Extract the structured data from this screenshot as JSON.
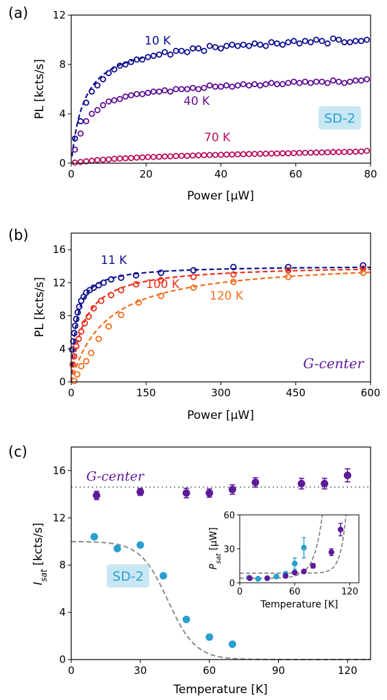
{
  "chart_data": [
    {
      "panel_label": "(a)",
      "type": "scatter",
      "xlabel": "Power [μW]",
      "ylabel": "PL [kcts/s]",
      "xlim": [
        0,
        80
      ],
      "ylim": [
        0,
        12
      ],
      "xticks": [
        "0",
        "20",
        "40",
        "60",
        "80"
      ],
      "yticks": [
        "0",
        "4",
        "8",
        "12"
      ],
      "tag": "SD-2",
      "series": [
        {
          "name": "10 K",
          "color": "#0d0d8c",
          "x": [
            1,
            2.5,
            4,
            5.5,
            7,
            8.5,
            10,
            11.5,
            13,
            14.5,
            16,
            17.5,
            19,
            20.5,
            22,
            23.5,
            25,
            26.5,
            28,
            29.5,
            31,
            32.5,
            34,
            35.5,
            37,
            38.5,
            40,
            41.5,
            43,
            44.5,
            46,
            47.5,
            49,
            50.5,
            52,
            53.5,
            55,
            56.5,
            58,
            59.5,
            61,
            62.5,
            64,
            65.5,
            67,
            68.5,
            70,
            71.5,
            73,
            74.5,
            76,
            77.5,
            79
          ],
          "y": [
            2.0,
            3.4,
            4.9,
            5.8,
            6.3,
            6.8,
            7.3,
            7.6,
            7.9,
            8.0,
            8.2,
            8.4,
            8.4,
            8.6,
            8.7,
            8.8,
            9.0,
            8.8,
            9.1,
            9.1,
            9.0,
            9.3,
            9.3,
            9.1,
            9.5,
            9.4,
            9.3,
            9.5,
            9.6,
            9.5,
            9.6,
            9.5,
            9.7,
            9.6,
            9.5,
            9.8,
            9.7,
            9.6,
            9.8,
            9.9,
            9.7,
            9.9,
            9.8,
            10.0,
            9.9,
            9.7,
            10.1,
            10.0,
            9.8,
            9.8,
            9.9,
            9.9,
            10.0
          ],
          "fit": "saturation",
          "fit_isat": 10.1,
          "fit_psat": 3.5
        },
        {
          "name": "40 K",
          "color": "#5e0f93",
          "x": [
            1,
            2.5,
            4,
            5.5,
            7,
            8.5,
            10,
            11.5,
            13,
            14.5,
            16,
            17.5,
            19,
            20.5,
            22,
            23.5,
            25,
            26.5,
            28,
            29.5,
            31,
            32.5,
            34,
            35.5,
            37,
            38.5,
            40,
            41.5,
            43,
            44.5,
            46,
            47.5,
            49,
            50.5,
            52,
            53.5,
            55,
            56.5,
            58,
            59.5,
            61,
            62.5,
            64,
            65.5,
            67,
            68.5,
            70,
            71.5,
            73,
            74.5,
            76,
            77.5,
            79
          ],
          "y": [
            1.1,
            2.4,
            3.4,
            4.0,
            4.3,
            4.7,
            5.0,
            5.1,
            5.2,
            5.4,
            5.5,
            5.6,
            5.6,
            5.7,
            5.8,
            5.8,
            5.9,
            5.8,
            6.0,
            6.0,
            6.0,
            6.1,
            6.0,
            6.1,
            6.3,
            6.2,
            6.2,
            6.3,
            6.2,
            6.3,
            6.4,
            6.3,
            6.4,
            6.3,
            6.4,
            6.5,
            6.4,
            6.4,
            6.5,
            6.6,
            6.5,
            6.6,
            6.5,
            6.6,
            6.6,
            6.5,
            6.7,
            6.6,
            6.5,
            6.6,
            6.7,
            6.7,
            6.8
          ],
          "fit": "none"
        },
        {
          "name": "70 K",
          "color": "#b80f5c",
          "x": [
            1,
            2.5,
            4,
            5.5,
            7,
            8.5,
            10,
            11.5,
            13,
            14.5,
            16,
            17.5,
            19,
            20.5,
            22,
            23.5,
            25,
            26.5,
            28,
            29.5,
            31,
            32.5,
            34,
            35.5,
            37,
            38.5,
            40,
            41.5,
            43,
            44.5,
            46,
            47.5,
            49,
            50.5,
            52,
            53.5,
            55,
            56.5,
            58,
            59.5,
            61,
            62.5,
            64,
            65.5,
            67,
            68.5,
            70,
            71.5,
            73,
            74.5,
            76,
            77.5,
            79
          ],
          "y": [
            0.05,
            0.1,
            0.15,
            0.2,
            0.25,
            0.28,
            0.3,
            0.35,
            0.38,
            0.4,
            0.42,
            0.45,
            0.47,
            0.5,
            0.5,
            0.52,
            0.55,
            0.55,
            0.58,
            0.6,
            0.6,
            0.62,
            0.64,
            0.65,
            0.66,
            0.67,
            0.68,
            0.7,
            0.7,
            0.72,
            0.73,
            0.74,
            0.75,
            0.76,
            0.77,
            0.78,
            0.79,
            0.8,
            0.8,
            0.82,
            0.83,
            0.84,
            0.85,
            0.86,
            0.87,
            0.88,
            0.9,
            0.9,
            0.91,
            0.92,
            0.93,
            0.95,
            1.0
          ],
          "fit": "none"
        }
      ]
    },
    {
      "panel_label": "(b)",
      "type": "scatter",
      "xlabel": "Power [μW]",
      "ylabel": "PL [kcts/s]",
      "xlim": [
        0,
        600
      ],
      "ylim": [
        0,
        18
      ],
      "xticks": [
        "0",
        "150",
        "300",
        "450",
        "600"
      ],
      "yticks": [
        "0",
        "4",
        "8",
        "12",
        "16"
      ],
      "tag": "G-center",
      "series": [
        {
          "name": "11 K",
          "color": "#0d0d8c",
          "x": [
            2,
            4,
            6,
            8,
            10,
            13,
            16,
            20,
            25,
            30,
            37,
            45,
            55,
            65,
            80,
            100,
            130,
            180,
            245,
            325,
            435,
            585
          ],
          "y": [
            3.9,
            4.9,
            5.9,
            6.8,
            7.6,
            8.4,
            9.1,
            9.8,
            10.3,
            10.8,
            11.1,
            11.4,
            11.7,
            12.0,
            12.4,
            12.6,
            12.9,
            13.2,
            13.5,
            13.9,
            13.9,
            14.1
          ],
          "fit": "saturation",
          "fit_isat": 14.1,
          "fit_psat": 10
        },
        {
          "name": "100 K",
          "color": "#e8301a",
          "x": [
            3,
            6,
            10,
            15,
            20,
            27,
            35,
            45,
            60,
            80,
            100,
            130,
            180,
            245,
            325,
            435,
            585
          ],
          "y": [
            2.1,
            3.1,
            4.3,
            5.2,
            6.1,
            7.1,
            7.9,
            8.9,
            9.8,
            10.5,
            11.1,
            11.8,
            12.3,
            12.7,
            13.0,
            13.5,
            13.7
          ],
          "fit": "saturation",
          "fit_isat": 14.2,
          "fit_psat": 25
        },
        {
          "name": "120 K",
          "color": "#f06d1a",
          "x": [
            6,
            12,
            20,
            30,
            40,
            55,
            75,
            100,
            135,
            180,
            245,
            325,
            435,
            585
          ],
          "y": [
            0.1,
            0.9,
            1.9,
            2.5,
            3.5,
            5.2,
            6.7,
            8.1,
            9.6,
            10.4,
            11.4,
            12.1,
            12.7,
            13.2
          ],
          "fit": "saturation",
          "fit_isat": 14.8,
          "fit_psat": 70
        }
      ]
    },
    {
      "panel_label": "(c)",
      "type": "scatter",
      "xlabel": "Temperature [K]",
      "ylabel": "Isat [kcts/s]",
      "xlim": [
        0,
        130
      ],
      "ylim": [
        0,
        18
      ],
      "xticks": [
        "0",
        "30",
        "60",
        "90",
        "120"
      ],
      "yticks": [
        "0",
        "4",
        "8",
        "12",
        "16"
      ],
      "series": [
        {
          "name": "G-center",
          "color": "#5e1a9a",
          "x": [
            11,
            30,
            50,
            60,
            70,
            80,
            100,
            110,
            120
          ],
          "y": [
            13.9,
            14.2,
            14.1,
            14.1,
            14.4,
            15.0,
            14.9,
            14.9,
            15.6
          ],
          "err": [
            0.35,
            0.3,
            0.4,
            0.35,
            0.4,
            0.4,
            0.45,
            0.45,
            0.55
          ],
          "ref_level": 14.6
        },
        {
          "name": "SD-2",
          "color": "#2a9fd0",
          "x": [
            10,
            20,
            30,
            40,
            50,
            60,
            70
          ],
          "y": [
            10.4,
            9.4,
            9.7,
            7.1,
            3.4,
            1.9,
            1.3
          ],
          "fit": "arrhenius",
          "fit_i0": 10.0,
          "fit_t0": 42,
          "fit_w": 6
        }
      ],
      "inset": {
        "xlabel": "Temperature [K]",
        "ylabel": "Psat [μW]",
        "xlim": [
          0,
          130
        ],
        "ylim": [
          0,
          60
        ],
        "xticks": [
          "0",
          "60",
          "120"
        ],
        "yticks": [
          "0",
          "30",
          "60"
        ],
        "series": [
          {
            "name": "SD-2",
            "color": "#2a9fd0",
            "x": [
              10,
              20,
              30,
              40,
              50,
              60,
              70
            ],
            "y": [
              4.5,
              3.5,
              4.0,
              5.5,
              8.0,
              17.0,
              31.0
            ],
            "err": [
              0.5,
              0.5,
              0.5,
              0.6,
              1.0,
              5.0,
              9.0
            ]
          },
          {
            "name": "G-center",
            "color": "#5e1a9a",
            "x": [
              11,
              30,
              50,
              60,
              70,
              80,
              100,
              110
            ],
            "y": [
              4.0,
              4.0,
              6.0,
              9.0,
              10.0,
              15.0,
              27.0,
              47.0
            ],
            "err": [
              0.5,
              0.5,
              0.8,
              1.0,
              1.0,
              2.0,
              3.0,
              5.5
            ]
          }
        ]
      }
    }
  ]
}
